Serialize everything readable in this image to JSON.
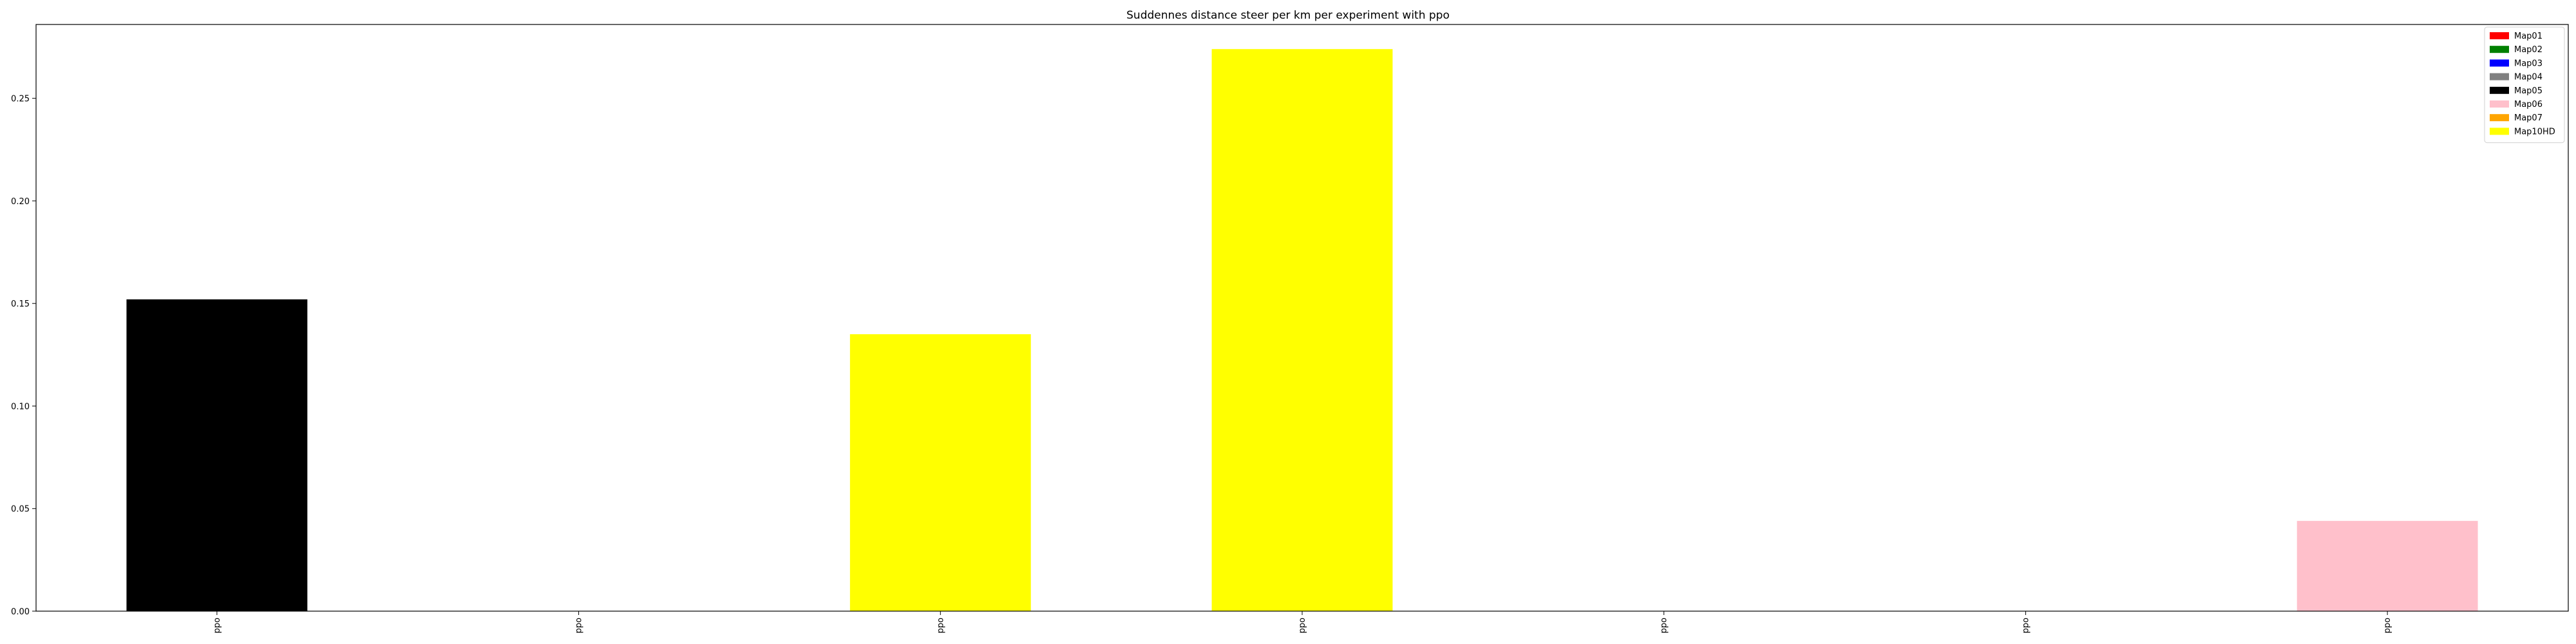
{
  "chart_data": {
    "type": "bar",
    "title": "Suddennes distance steer per km per experiment with ppo",
    "xlabel": "",
    "ylabel": "",
    "categories": [
      "ppo",
      "ppo",
      "ppo",
      "ppo",
      "ppo",
      "ppo",
      "ppo"
    ],
    "bars": [
      {
        "value": 0.152,
        "series": "Map05"
      },
      {
        "value": 0.0,
        "series": null
      },
      {
        "value": 0.135,
        "series": "Map10HD"
      },
      {
        "value": 0.274,
        "series": "Map10HD"
      },
      {
        "value": 0.0,
        "series": null
      },
      {
        "value": 0.0,
        "series": null
      },
      {
        "value": 0.044,
        "series": "Map06"
      }
    ],
    "ylim": [
      0,
      0.286
    ],
    "yticks": [
      "0.00",
      "0.05",
      "0.10",
      "0.15",
      "0.20",
      "0.25"
    ],
    "grid": false,
    "legend_position": "top-right",
    "legend": [
      {
        "label": "Map01",
        "color": "#ff0000"
      },
      {
        "label": "Map02",
        "color": "#008000"
      },
      {
        "label": "Map03",
        "color": "#0000ff"
      },
      {
        "label": "Map04",
        "color": "#808080"
      },
      {
        "label": "Map05",
        "color": "#000000"
      },
      {
        "label": "Map06",
        "color": "#ffc0cb"
      },
      {
        "label": "Map07",
        "color": "#ffa500"
      },
      {
        "label": "Map10HD",
        "color": "#ffff00"
      }
    ]
  }
}
